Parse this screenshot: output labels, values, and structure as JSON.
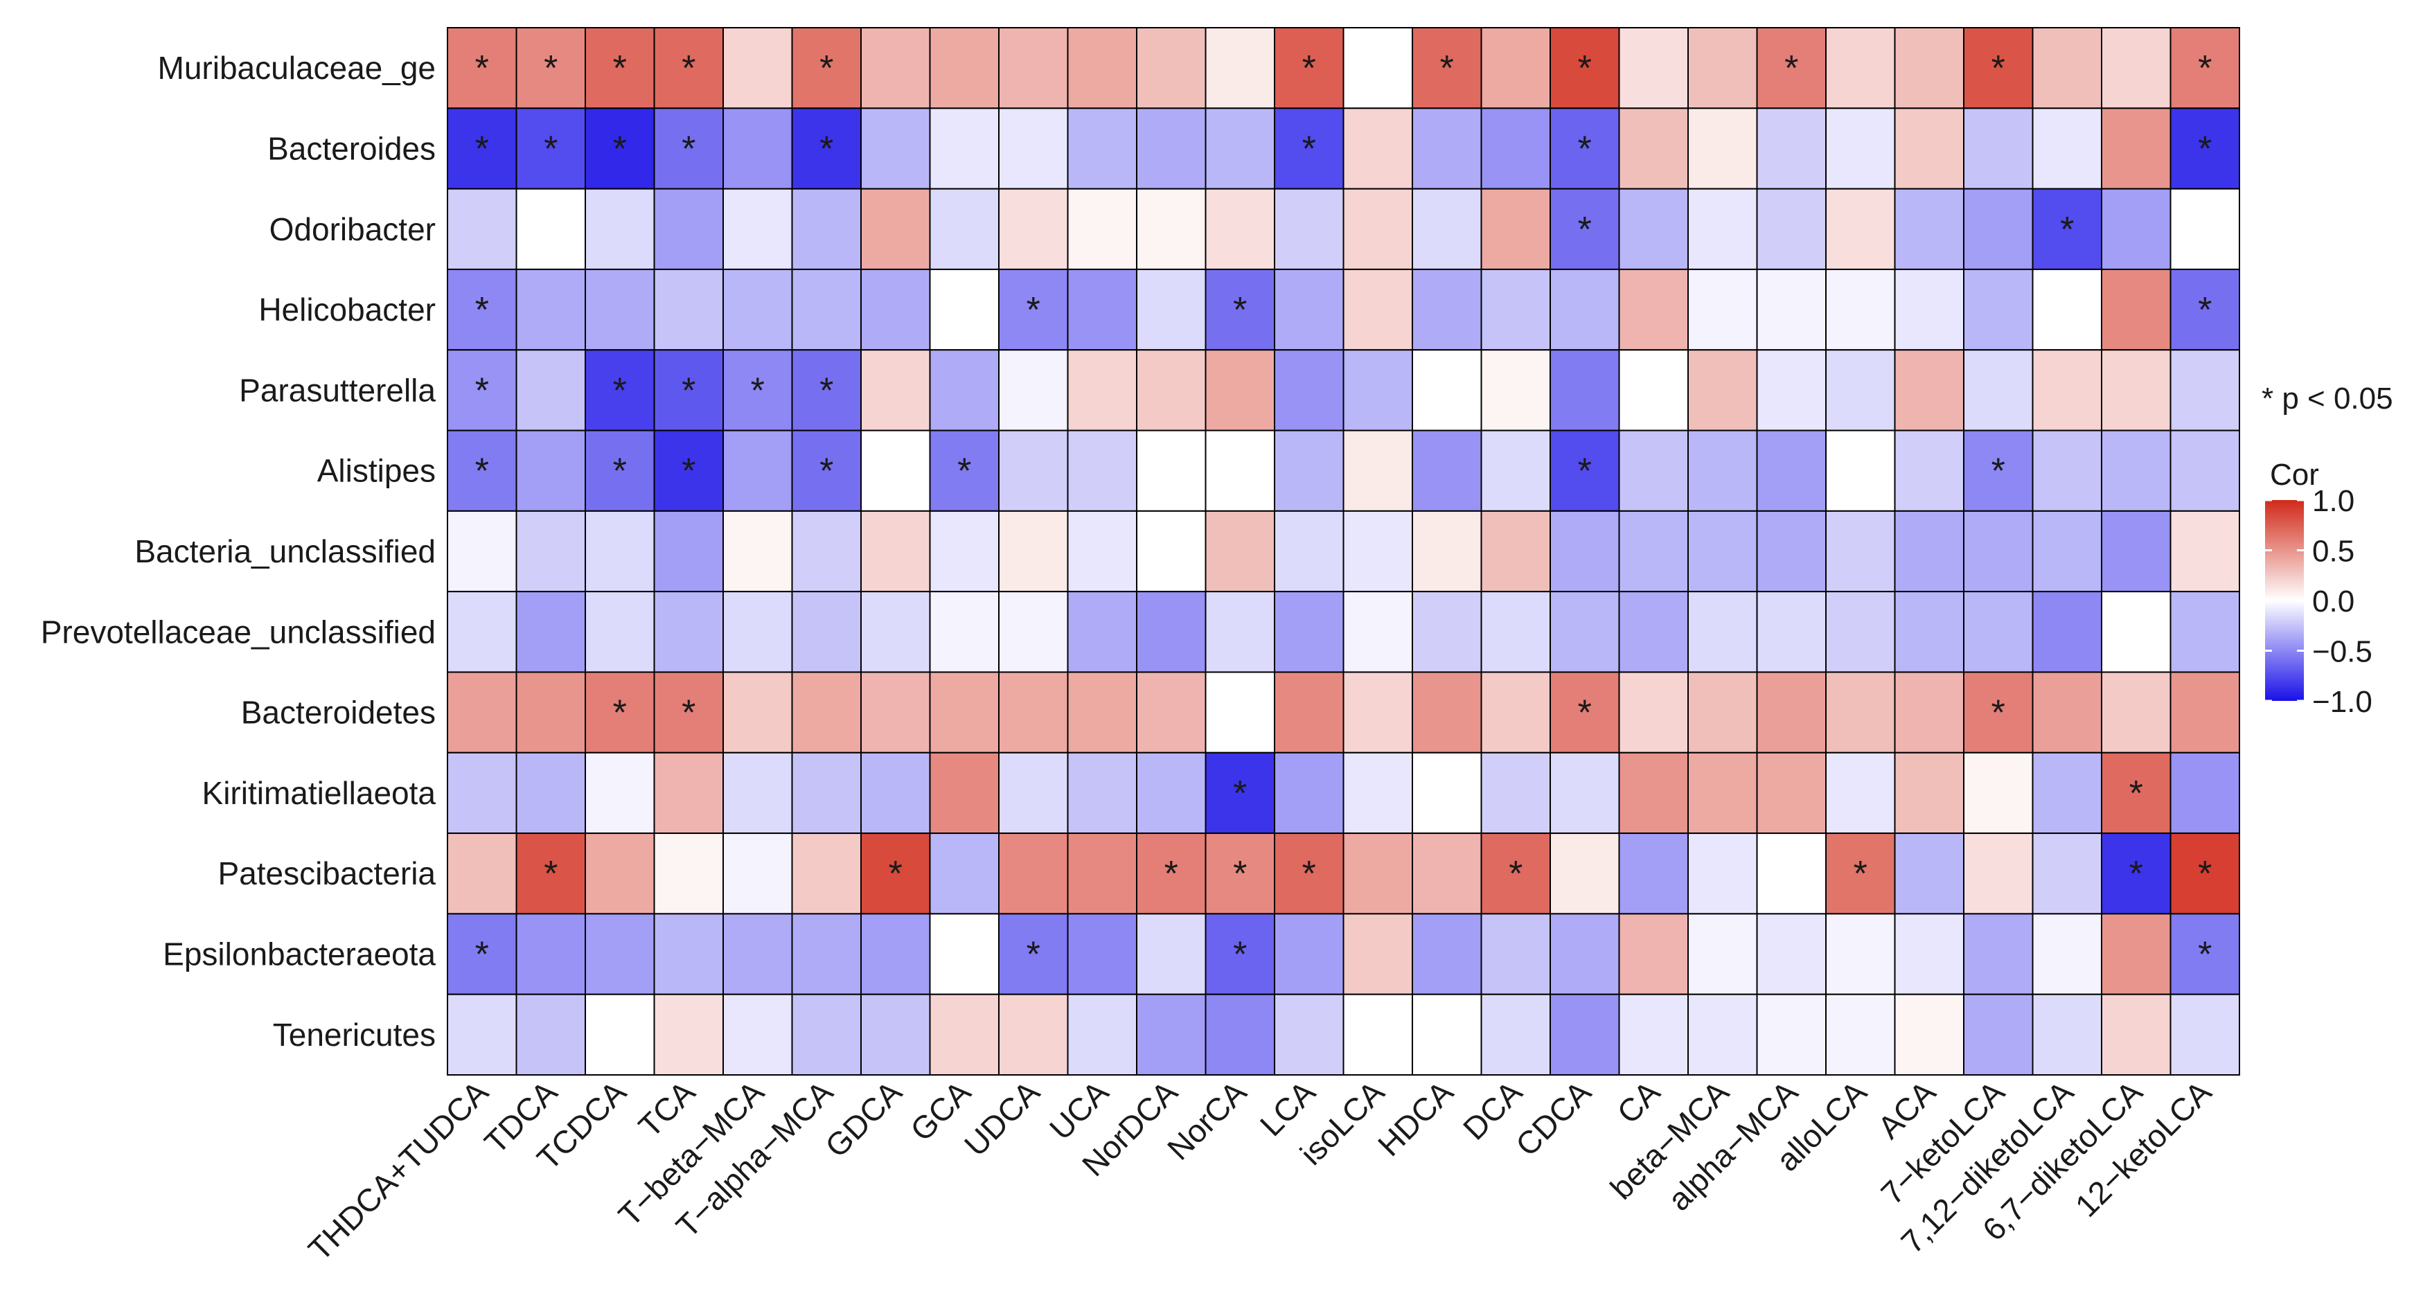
{
  "chart_data": {
    "type": "heatmap",
    "title": "",
    "xlabel": "",
    "ylabel": "",
    "rows": [
      "Muribaculaceae_ge",
      "Bacteroides",
      "Odoribacter",
      "Helicobacter",
      "Parasutterella",
      "Alistipes",
      "Bacteria_unclassified",
      "Prevotellaceae_unclassified",
      "Bacteroidetes",
      "Kiritimatiellaeota",
      "Patescibacteria",
      "Epsilonbacteraeota",
      "Tenericutes"
    ],
    "columns": [
      "THDCA+TUDCA",
      "TDCA",
      "TCDCA",
      "TCA",
      "T−beta−MCA",
      "T−alpha−MCA",
      "GDCA",
      "GCA",
      "UDCA",
      "UCA",
      "NorDCA",
      "NorCA",
      "LCA",
      "isoLCA",
      "HDCA",
      "DCA",
      "CDCA",
      "CA",
      "beta−MCA",
      "alpha−MCA",
      "alloLCA",
      "ACA",
      "7−ketoLCA",
      "7,12−diketoLCA",
      "6,7−diketoLCA",
      "12−ketoLCA"
    ],
    "values": [
      [
        0.6,
        0.55,
        0.7,
        0.7,
        0.2,
        0.65,
        0.35,
        0.4,
        0.35,
        0.4,
        0.3,
        0.1,
        0.75,
        0.0,
        0.7,
        0.4,
        0.85,
        0.15,
        0.3,
        0.6,
        0.2,
        0.3,
        0.8,
        0.3,
        0.2,
        0.6
      ],
      [
        -0.85,
        -0.75,
        -0.9,
        -0.6,
        -0.45,
        -0.85,
        -0.3,
        -0.1,
        -0.1,
        -0.3,
        -0.35,
        -0.3,
        -0.75,
        0.2,
        -0.35,
        -0.45,
        -0.65,
        0.3,
        0.1,
        -0.2,
        -0.1,
        0.25,
        -0.25,
        -0.1,
        0.5,
        -0.85
      ],
      [
        -0.2,
        0.0,
        -0.15,
        -0.4,
        -0.1,
        -0.3,
        0.4,
        -0.15,
        0.15,
        0.05,
        0.05,
        0.15,
        -0.2,
        0.2,
        -0.15,
        0.4,
        -0.6,
        -0.3,
        -0.1,
        -0.2,
        0.15,
        -0.3,
        -0.4,
        -0.75,
        -0.4,
        0.0
      ],
      [
        -0.5,
        -0.35,
        -0.35,
        -0.25,
        -0.3,
        -0.3,
        -0.35,
        0.0,
        -0.5,
        -0.45,
        -0.15,
        -0.6,
        -0.35,
        0.2,
        -0.35,
        -0.25,
        -0.3,
        0.35,
        -0.05,
        -0.05,
        -0.05,
        -0.1,
        -0.3,
        0.0,
        0.55,
        -0.6
      ],
      [
        -0.45,
        -0.25,
        -0.8,
        -0.7,
        -0.5,
        -0.6,
        0.2,
        -0.35,
        -0.05,
        0.2,
        0.25,
        0.4,
        -0.45,
        -0.3,
        0.0,
        0.05,
        -0.55,
        0.0,
        0.3,
        -0.1,
        -0.15,
        0.35,
        -0.15,
        0.2,
        0.2,
        -0.2
      ],
      [
        -0.55,
        -0.4,
        -0.6,
        -0.85,
        -0.4,
        -0.6,
        0.0,
        -0.55,
        -0.2,
        -0.2,
        0.0,
        0.0,
        -0.3,
        0.1,
        -0.45,
        -0.15,
        -0.75,
        -0.25,
        -0.3,
        -0.4,
        0.0,
        -0.2,
        -0.5,
        -0.25,
        -0.3,
        -0.25
      ],
      [
        -0.05,
        -0.2,
        -0.15,
        -0.4,
        0.05,
        -0.2,
        0.2,
        -0.1,
        0.1,
        -0.1,
        0.0,
        0.3,
        -0.15,
        -0.1,
        0.1,
        0.3,
        -0.35,
        -0.3,
        -0.3,
        -0.35,
        -0.2,
        -0.35,
        -0.35,
        -0.3,
        -0.45,
        0.15
      ],
      [
        -0.15,
        -0.4,
        -0.15,
        -0.3,
        -0.15,
        -0.25,
        -0.15,
        -0.05,
        -0.05,
        -0.35,
        -0.45,
        -0.15,
        -0.4,
        -0.05,
        -0.2,
        -0.15,
        -0.3,
        -0.35,
        -0.15,
        -0.15,
        -0.2,
        -0.3,
        -0.3,
        -0.5,
        0.0,
        -0.3
      ],
      [
        0.45,
        0.5,
        0.6,
        0.6,
        0.25,
        0.4,
        0.35,
        0.4,
        0.4,
        0.4,
        0.35,
        0.0,
        0.55,
        0.2,
        0.5,
        0.25,
        0.6,
        0.2,
        0.3,
        0.45,
        0.3,
        0.35,
        0.6,
        0.45,
        0.25,
        0.5
      ],
      [
        -0.25,
        -0.3,
        -0.05,
        0.35,
        -0.15,
        -0.25,
        -0.3,
        0.55,
        -0.15,
        -0.25,
        -0.3,
        -0.85,
        -0.4,
        -0.1,
        0.0,
        -0.2,
        -0.15,
        0.5,
        0.4,
        0.4,
        -0.1,
        0.3,
        0.05,
        -0.3,
        0.7,
        -0.45
      ],
      [
        0.3,
        0.8,
        0.4,
        0.05,
        -0.05,
        0.25,
        0.85,
        -0.3,
        0.55,
        0.55,
        0.6,
        0.55,
        0.7,
        0.4,
        0.35,
        0.7,
        0.1,
        -0.4,
        -0.1,
        0.0,
        0.65,
        -0.3,
        0.15,
        -0.2,
        -0.85,
        0.9
      ],
      [
        -0.55,
        -0.45,
        -0.4,
        -0.3,
        -0.35,
        -0.35,
        -0.4,
        0.0,
        -0.55,
        -0.5,
        -0.15,
        -0.65,
        -0.4,
        0.25,
        -0.4,
        -0.25,
        -0.35,
        0.35,
        -0.05,
        -0.1,
        -0.05,
        -0.1,
        -0.35,
        -0.05,
        0.5,
        -0.55
      ],
      [
        -0.15,
        -0.25,
        0.0,
        0.15,
        -0.1,
        -0.25,
        -0.25,
        0.2,
        0.2,
        -0.15,
        -0.4,
        -0.5,
        -0.2,
        0.0,
        0.0,
        -0.15,
        -0.45,
        -0.1,
        -0.1,
        -0.05,
        -0.05,
        0.05,
        -0.35,
        -0.15,
        0.2,
        -0.15
      ]
    ],
    "significant": [
      [
        0,
        0
      ],
      [
        0,
        1
      ],
      [
        0,
        2
      ],
      [
        0,
        3
      ],
      [
        0,
        5
      ],
      [
        0,
        12
      ],
      [
        0,
        14
      ],
      [
        0,
        16
      ],
      [
        0,
        19
      ],
      [
        0,
        22
      ],
      [
        0,
        25
      ],
      [
        1,
        0
      ],
      [
        1,
        1
      ],
      [
        1,
        2
      ],
      [
        1,
        3
      ],
      [
        1,
        5
      ],
      [
        1,
        12
      ],
      [
        1,
        16
      ],
      [
        1,
        25
      ],
      [
        2,
        16
      ],
      [
        2,
        23
      ],
      [
        3,
        0
      ],
      [
        3,
        8
      ],
      [
        3,
        11
      ],
      [
        3,
        25
      ],
      [
        4,
        0
      ],
      [
        4,
        2
      ],
      [
        4,
        3
      ],
      [
        4,
        4
      ],
      [
        4,
        5
      ],
      [
        5,
        0
      ],
      [
        5,
        2
      ],
      [
        5,
        3
      ],
      [
        5,
        5
      ],
      [
        5,
        7
      ],
      [
        5,
        16
      ],
      [
        5,
        22
      ],
      [
        8,
        2
      ],
      [
        8,
        3
      ],
      [
        8,
        16
      ],
      [
        8,
        22
      ],
      [
        9,
        11
      ],
      [
        9,
        24
      ],
      [
        10,
        1
      ],
      [
        10,
        6
      ],
      [
        10,
        10
      ],
      [
        10,
        11
      ],
      [
        10,
        12
      ],
      [
        10,
        15
      ],
      [
        10,
        20
      ],
      [
        10,
        24
      ],
      [
        10,
        25
      ],
      [
        11,
        0
      ],
      [
        11,
        8
      ],
      [
        11,
        11
      ],
      [
        11,
        25
      ]
    ],
    "star_symbol": "*",
    "significance_note": "* p < 0.05",
    "legend": {
      "title": "Cor",
      "ticks": [
        "1.0",
        "0.5",
        "0.0",
        "−0.5",
        "−1.0"
      ],
      "tick_values": [
        1.0,
        0.5,
        0.0,
        -0.5,
        -1.0
      ],
      "range": [
        -1.0,
        1.0
      ]
    },
    "colors": {
      "high": "#d12a1a",
      "mid": "#ffffff",
      "low": "#1a10e8"
    }
  }
}
